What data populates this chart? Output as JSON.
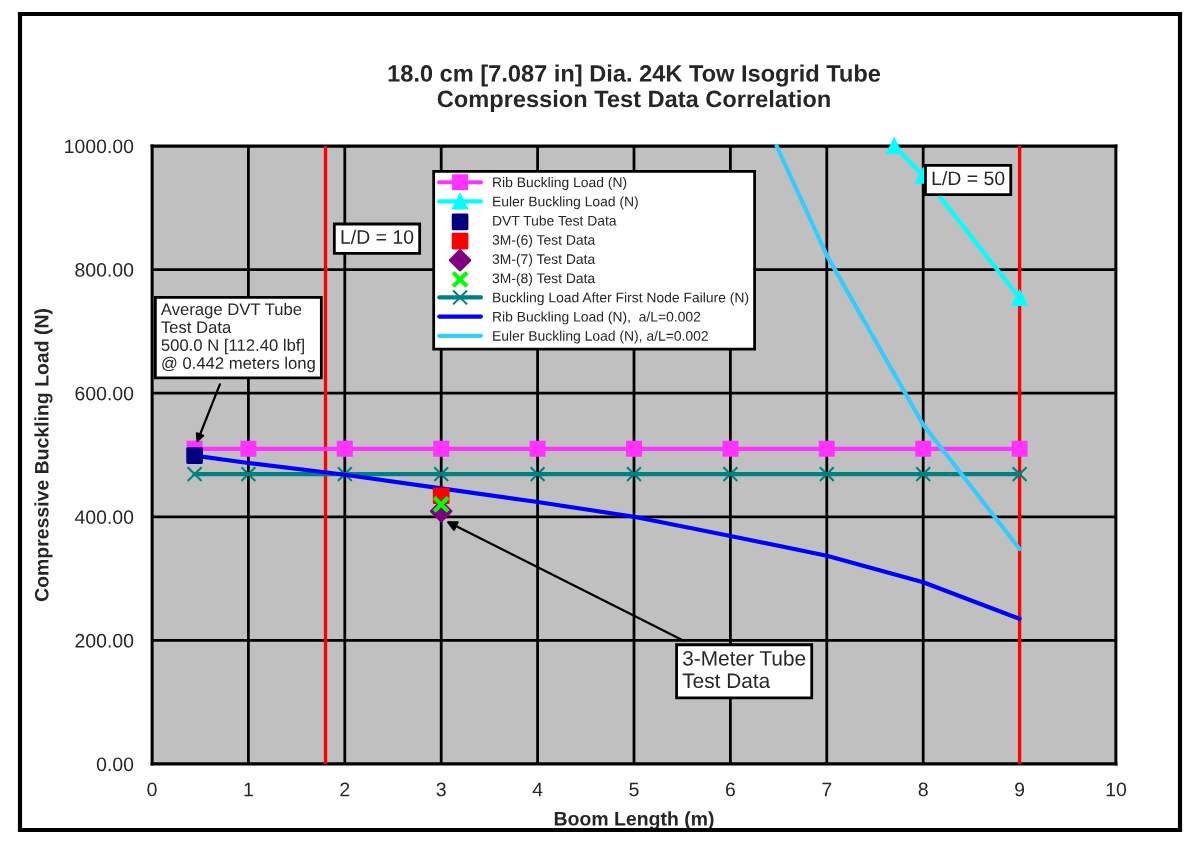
{
  "chart_data": {
    "type": "line",
    "title": "18.0 cm [7.087 in] Dia. 24K Tow Isogrid Tube\nCompression Test Data Correlation",
    "xlabel": "Boom Length (m)",
    "ylabel": "Compressive Buckling Load (N)",
    "xlim": [
      0,
      10
    ],
    "xticks": [
      0,
      1,
      2,
      3,
      4,
      5,
      6,
      7,
      8,
      9,
      10
    ],
    "ylim": [
      0,
      1000
    ],
    "yticks": [
      {
        "value": 0,
        "label": "0.00"
      },
      {
        "value": 200,
        "label": "200.00"
      },
      {
        "value": 400,
        "label": "400.00"
      },
      {
        "value": 600,
        "label": "600.00"
      },
      {
        "value": 800,
        "label": "800.00"
      },
      {
        "value": 1000,
        "label": "1000.00"
      }
    ],
    "grid": true,
    "legend": "top",
    "series": [
      {
        "name": "Rib Buckling Load (N)",
        "type": "line",
        "color": "#ff33ff",
        "marker": "square",
        "x": [
          0.442,
          1,
          2,
          3,
          4,
          5,
          6,
          7,
          8,
          9
        ],
        "values": [
          510,
          510,
          510,
          510,
          510,
          510,
          510,
          510,
          510,
          510
        ]
      },
      {
        "name": "Euler Buckling Load (N)",
        "type": "line",
        "color": "#00ffff",
        "marker": "triangle",
        "x": [
          7.7,
          8,
          9
        ],
        "values": [
          1000,
          952,
          754
        ]
      },
      {
        "name": "DVT Tube Test Data",
        "type": "scatter",
        "color": "#000080",
        "marker": "square",
        "x": [
          0.442
        ],
        "values": [
          499
        ]
      },
      {
        "name": "3M-(6) Test Data",
        "type": "scatter",
        "color": "#ff0000",
        "marker": "square",
        "x": [
          3
        ],
        "values": [
          434
        ]
      },
      {
        "name": "3M-(7) Test Data",
        "type": "scatter",
        "color": "#800080",
        "marker": "diamond",
        "x": [
          3
        ],
        "values": [
          409
        ]
      },
      {
        "name": "3M-(8) Test Data",
        "type": "scatter",
        "color": "#00ff00",
        "marker": "cross",
        "x": [
          3
        ],
        "values": [
          420
        ]
      },
      {
        "name": "Buckling Load After First Node Failure (N)",
        "type": "line",
        "color": "#008080",
        "marker": "cross",
        "x": [
          0.442,
          1,
          2,
          3,
          4,
          5,
          6,
          7,
          8,
          9
        ],
        "values": [
          469,
          469,
          469,
          469,
          469,
          469,
          469,
          469,
          469,
          469
        ]
      },
      {
        "name": "Rib Buckling Load (N),  a/L=0.002",
        "type": "line",
        "color": "#0000ff",
        "marker": "none",
        "x": [
          0.442,
          1,
          2,
          3,
          4,
          5,
          6,
          7,
          8,
          9
        ],
        "values": [
          499,
          487,
          468,
          446,
          424,
          400,
          369,
          337,
          294,
          235
        ]
      },
      {
        "name": "Euler Buckling Load (N), a/L=0.002",
        "type": "line",
        "color": "#33ccff",
        "marker": "none",
        "x": [
          6.48,
          7,
          8,
          9
        ],
        "values": [
          1000,
          823,
          549,
          348
        ]
      }
    ],
    "ref_lines": [
      {
        "axis": "x",
        "value": 1.8,
        "color": "#ff0000"
      },
      {
        "axis": "x",
        "value": 9,
        "color": "#ff0000"
      }
    ],
    "annotations": [
      "L/D = 10",
      "L/D = 50",
      {
        "text": "Average DVT Tube\nTest Data\n500.0 N [112.40 lbf]\n@ 0.442 meters long",
        "x": 0.442,
        "y": 499
      },
      {
        "text": "3-Meter Tube\nTest Data",
        "x": 3,
        "y": 409
      }
    ]
  }
}
